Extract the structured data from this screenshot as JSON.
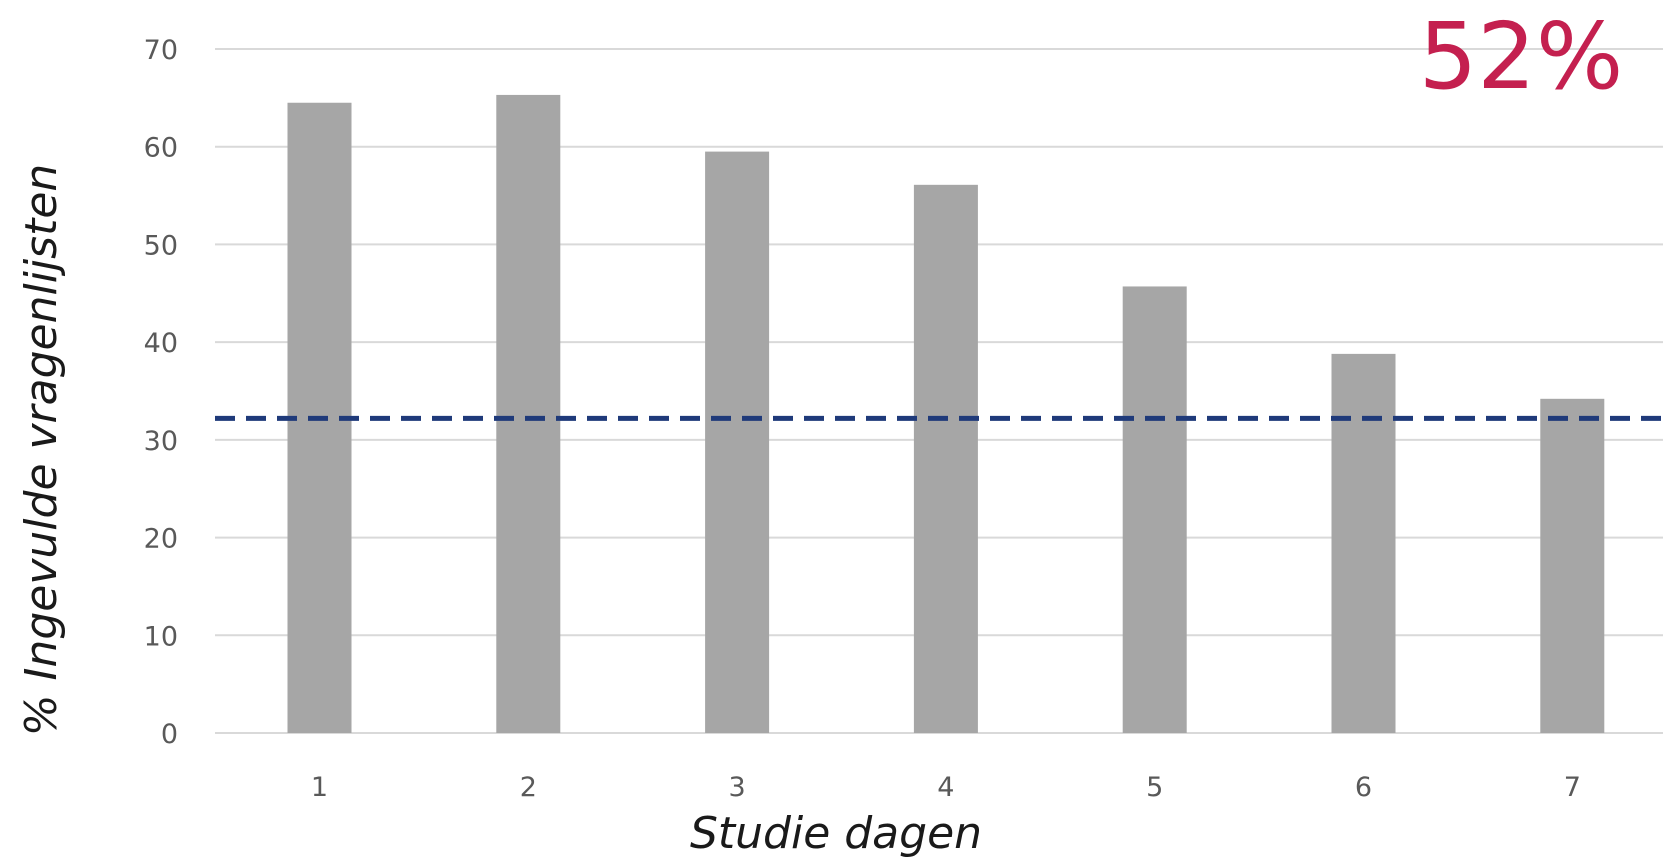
{
  "chart_data": {
    "type": "bar",
    "categories": [
      "1",
      "2",
      "3",
      "4",
      "5",
      "6",
      "7"
    ],
    "values": [
      64.5,
      65.3,
      59.5,
      56.1,
      45.7,
      38.8,
      34.2
    ],
    "xlabel": "Studie dagen",
    "ylabel": "% Ingevulde vragenlijsten",
    "ylim": [
      0,
      70
    ],
    "yticks": [
      "0",
      "10",
      "20",
      "30",
      "40",
      "50",
      "60",
      "70"
    ],
    "reference_line": {
      "value": 32.2,
      "style": "dashed",
      "color": "#1f3a7a"
    },
    "callout_text": "52%",
    "grid": true,
    "colors": {
      "bar": "#a6a6a6",
      "grid": "#d9d9d9",
      "callout": "#c4204f",
      "reference": "#1f3a7a"
    }
  }
}
